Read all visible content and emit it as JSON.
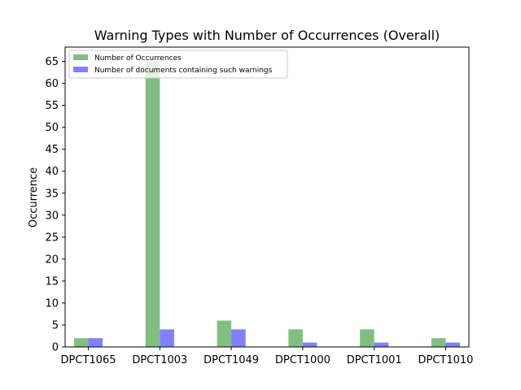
{
  "chart_data": {
    "type": "bar",
    "title": "Warning Types with Number of Occurrences (Overall)",
    "xlabel": "",
    "ylabel": "Occurrence",
    "categories": [
      "DPCT1065",
      "DPCT1003",
      "DPCT1049",
      "DPCT1000",
      "DPCT1001",
      "DPCT1010"
    ],
    "series": [
      {
        "name": "Number of Occurrences",
        "values": [
          2,
          65,
          6,
          4,
          4,
          2
        ],
        "color": "#80bf80"
      },
      {
        "name": "Number of documents containing such warnings",
        "values": [
          2,
          4,
          4,
          1,
          1,
          1
        ],
        "color": "#8080ff"
      }
    ],
    "ylim": [
      0,
      68.25
    ],
    "yticks": [
      0,
      5,
      10,
      15,
      20,
      25,
      30,
      35,
      40,
      45,
      50,
      55,
      60,
      65
    ],
    "legend_position": "top-left",
    "grid": false
  }
}
